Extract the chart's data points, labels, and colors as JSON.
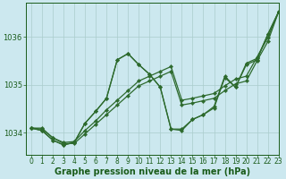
{
  "title": "Graphe pression niveau de la mer (hPa)",
  "bg_color": "#cce8ef",
  "line_color": "#2d6a2d",
  "grid_color": "#aacccc",
  "xlim": [
    -0.5,
    23
  ],
  "ylim": [
    1033.55,
    1036.7
  ],
  "yticks": [
    1034,
    1035,
    1036
  ],
  "xticks": [
    0,
    1,
    2,
    3,
    4,
    5,
    6,
    7,
    8,
    9,
    10,
    11,
    12,
    13,
    14,
    15,
    16,
    17,
    18,
    19,
    20,
    21,
    22,
    23
  ],
  "marker": "D",
  "markersize": 2.2,
  "linewidth": 0.9,
  "font_color": "#1a5c1a",
  "title_fontsize": 7.0,
  "tick_fontsize": 5.5,
  "series": [
    [
      1034.1,
      1034.1,
      1033.9,
      1033.78,
      1033.78,
      1033.98,
      1034.2,
      1034.42,
      1034.62,
      1034.82,
      1035.02,
      1035.12,
      1035.22,
      1035.32,
      1034.62,
      1034.65,
      1034.7,
      1034.75,
      1034.9,
      1035.05,
      1035.1,
      1035.52,
      1035.92,
      1036.55
    ],
    [
      1034.1,
      1034.1,
      1033.88,
      1033.78,
      1033.8,
      1034.12,
      1034.38,
      1034.62,
      1035.52,
      1035.62,
      1035.0,
      1034.78,
      1034.62,
      1034.52,
      1034.62,
      1034.72,
      1034.82,
      1034.92,
      1035.15,
      1035.05,
      1035.42,
      1035.62,
      1036.05,
      1036.55
    ],
    [
      1034.1,
      1034.05,
      1033.85,
      1033.75,
      1033.8,
      1034.2,
      1034.42,
      1034.72,
      1035.5,
      1035.65,
      1035.42,
      1035.2,
      1034.95,
      1034.08,
      1034.08,
      1034.28,
      1034.38,
      1034.52,
      1035.15,
      1034.95,
      1035.42,
      1035.52,
      1036.05,
      1036.55
    ],
    [
      1034.1,
      1034.05,
      1033.85,
      1033.78,
      1033.82,
      1034.2,
      1034.45,
      1034.72,
      1035.52,
      1035.65,
      1035.45,
      1035.25,
      1034.98,
      1034.05,
      1034.08,
      1034.28,
      1034.38,
      1034.52,
      1035.15,
      1034.95,
      1035.42,
      1035.52,
      1036.05,
      1036.55
    ]
  ]
}
